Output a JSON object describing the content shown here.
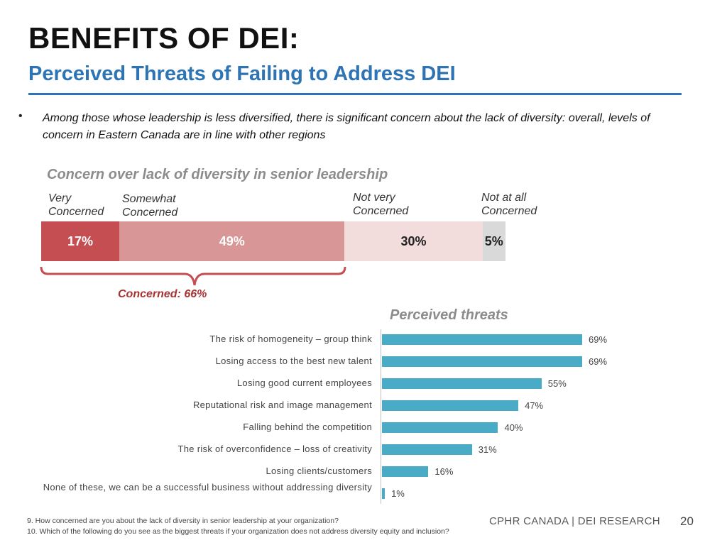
{
  "header": {
    "title": "BENEFITS OF DEI:",
    "subtitle": "Perceived Threats of Failing to Address DEI"
  },
  "bullet": {
    "marker": "•",
    "text": "Among those whose leadership is less diversified, there is significant concern about the lack of diversity: overall, levels of concern in Eastern Canada are in line with other regions"
  },
  "colors": {
    "very": "#c44e52",
    "somewhat": "#d99696",
    "not_very": "#f2dcdc",
    "not_at_all": "#d9d9d9",
    "threat_bar": "#4aabc6",
    "brace": "#c44e52"
  },
  "annotation": {
    "concerned_total": "Concerned: 66%"
  },
  "chart_data": [
    {
      "type": "bar",
      "stacked": true,
      "orientation": "horizontal",
      "title": "Concern over lack of diversity in senior leadership",
      "categories": [
        "Very Concerned",
        "Somewhat Concerned",
        "Not very Concerned",
        "Not at all Concerned"
      ],
      "label_lines": [
        [
          "Very",
          "Concerned"
        ],
        [
          "Somewhat",
          "Concerned"
        ],
        [
          "Not very",
          "Concerned"
        ],
        [
          "Not at all",
          "Concerned"
        ]
      ],
      "values": [
        17,
        49,
        30,
        5
      ],
      "value_labels": [
        "17%",
        "49%",
        "30%",
        "5%"
      ]
    },
    {
      "type": "bar",
      "orientation": "horizontal",
      "title": "Perceived threats",
      "categories": [
        "The risk of homogeneity – group think",
        "Losing access to the best new talent",
        "Losing good current employees",
        "Reputational risk and image management",
        "Falling behind the competition",
        "The risk of overconfidence – loss of creativity",
        "Losing clients/customers",
        "None of these, we can be a successful business without addressing diversity"
      ],
      "values": [
        69,
        69,
        55,
        47,
        40,
        31,
        16,
        1
      ],
      "value_labels": [
        "69%",
        "69%",
        "55%",
        "47%",
        "40%",
        "31%",
        "16%",
        "1%"
      ]
    }
  ],
  "footer": {
    "footnote1": "9. How concerned are you about the lack of diversity in senior leadership at your organization?",
    "footnote2": "10. Which of the following do you see as the biggest threats if your organization does not address diversity equity and inclusion?",
    "brand": "CPHR CANADA | DEI RESEARCH",
    "page_number": "20"
  }
}
